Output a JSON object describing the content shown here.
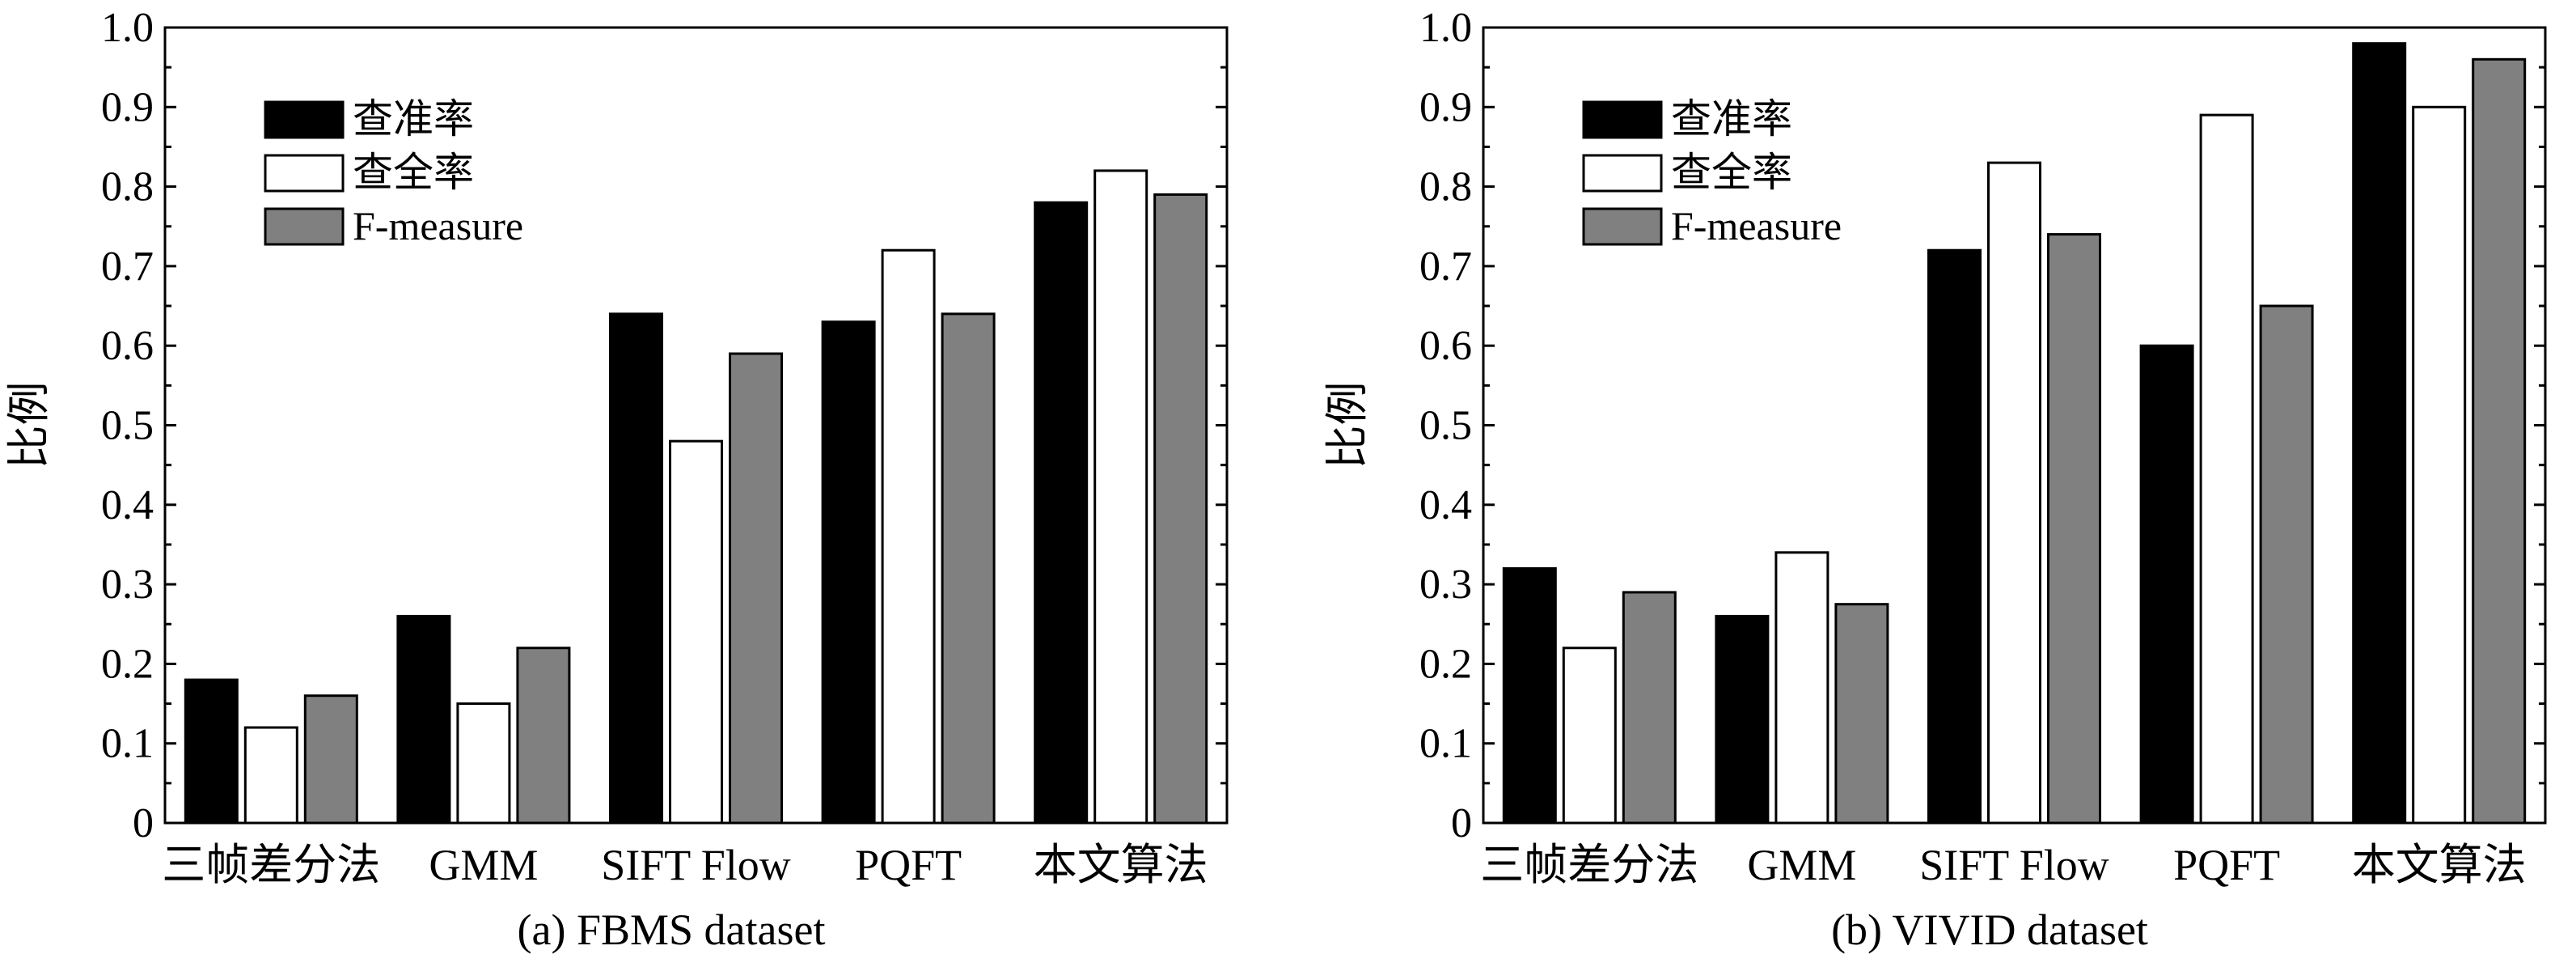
{
  "chart_data": [
    {
      "type": "bar",
      "caption": "(a) FBMS dataset",
      "ylabel": "比例",
      "xlabel": "",
      "ylim": [
        0,
        1.0
      ],
      "yticks": [
        "0",
        "0.1",
        "0.2",
        "0.3",
        "0.4",
        "0.5",
        "0.6",
        "0.7",
        "0.8",
        "0.9",
        "1.0"
      ],
      "categories": [
        "三帧差分法",
        "GMM",
        "SIFT Flow",
        "PQFT",
        "本文算法"
      ],
      "legend_position": "top-left",
      "grid": false,
      "series": [
        {
          "name": "查准率",
          "color": "#000000",
          "values": [
            0.18,
            0.26,
            0.64,
            0.63,
            0.78
          ]
        },
        {
          "name": "查全率",
          "color": "#ffffff",
          "values": [
            0.12,
            0.15,
            0.48,
            0.72,
            0.82
          ]
        },
        {
          "name": "F-measure",
          "color": "#808080",
          "values": [
            0.16,
            0.22,
            0.59,
            0.64,
            0.79
          ]
        }
      ]
    },
    {
      "type": "bar",
      "caption": "(b) VIVID dataset",
      "ylabel": "比例",
      "xlabel": "",
      "ylim": [
        0,
        1.0
      ],
      "yticks": [
        "0",
        "0.1",
        "0.2",
        "0.3",
        "0.4",
        "0.5",
        "0.6",
        "0.7",
        "0.8",
        "0.9",
        "1.0"
      ],
      "categories": [
        "三帧差分法",
        "GMM",
        "SIFT Flow",
        "PQFT",
        "本文算法"
      ],
      "legend_position": "top-left",
      "grid": false,
      "series": [
        {
          "name": "查准率",
          "color": "#000000",
          "values": [
            0.32,
            0.26,
            0.72,
            0.6,
            0.98
          ]
        },
        {
          "name": "查全率",
          "color": "#ffffff",
          "values": [
            0.22,
            0.34,
            0.83,
            0.89,
            0.9
          ]
        },
        {
          "name": "F-measure",
          "color": "#808080",
          "values": [
            0.29,
            0.275,
            0.74,
            0.65,
            0.96
          ]
        }
      ]
    }
  ]
}
